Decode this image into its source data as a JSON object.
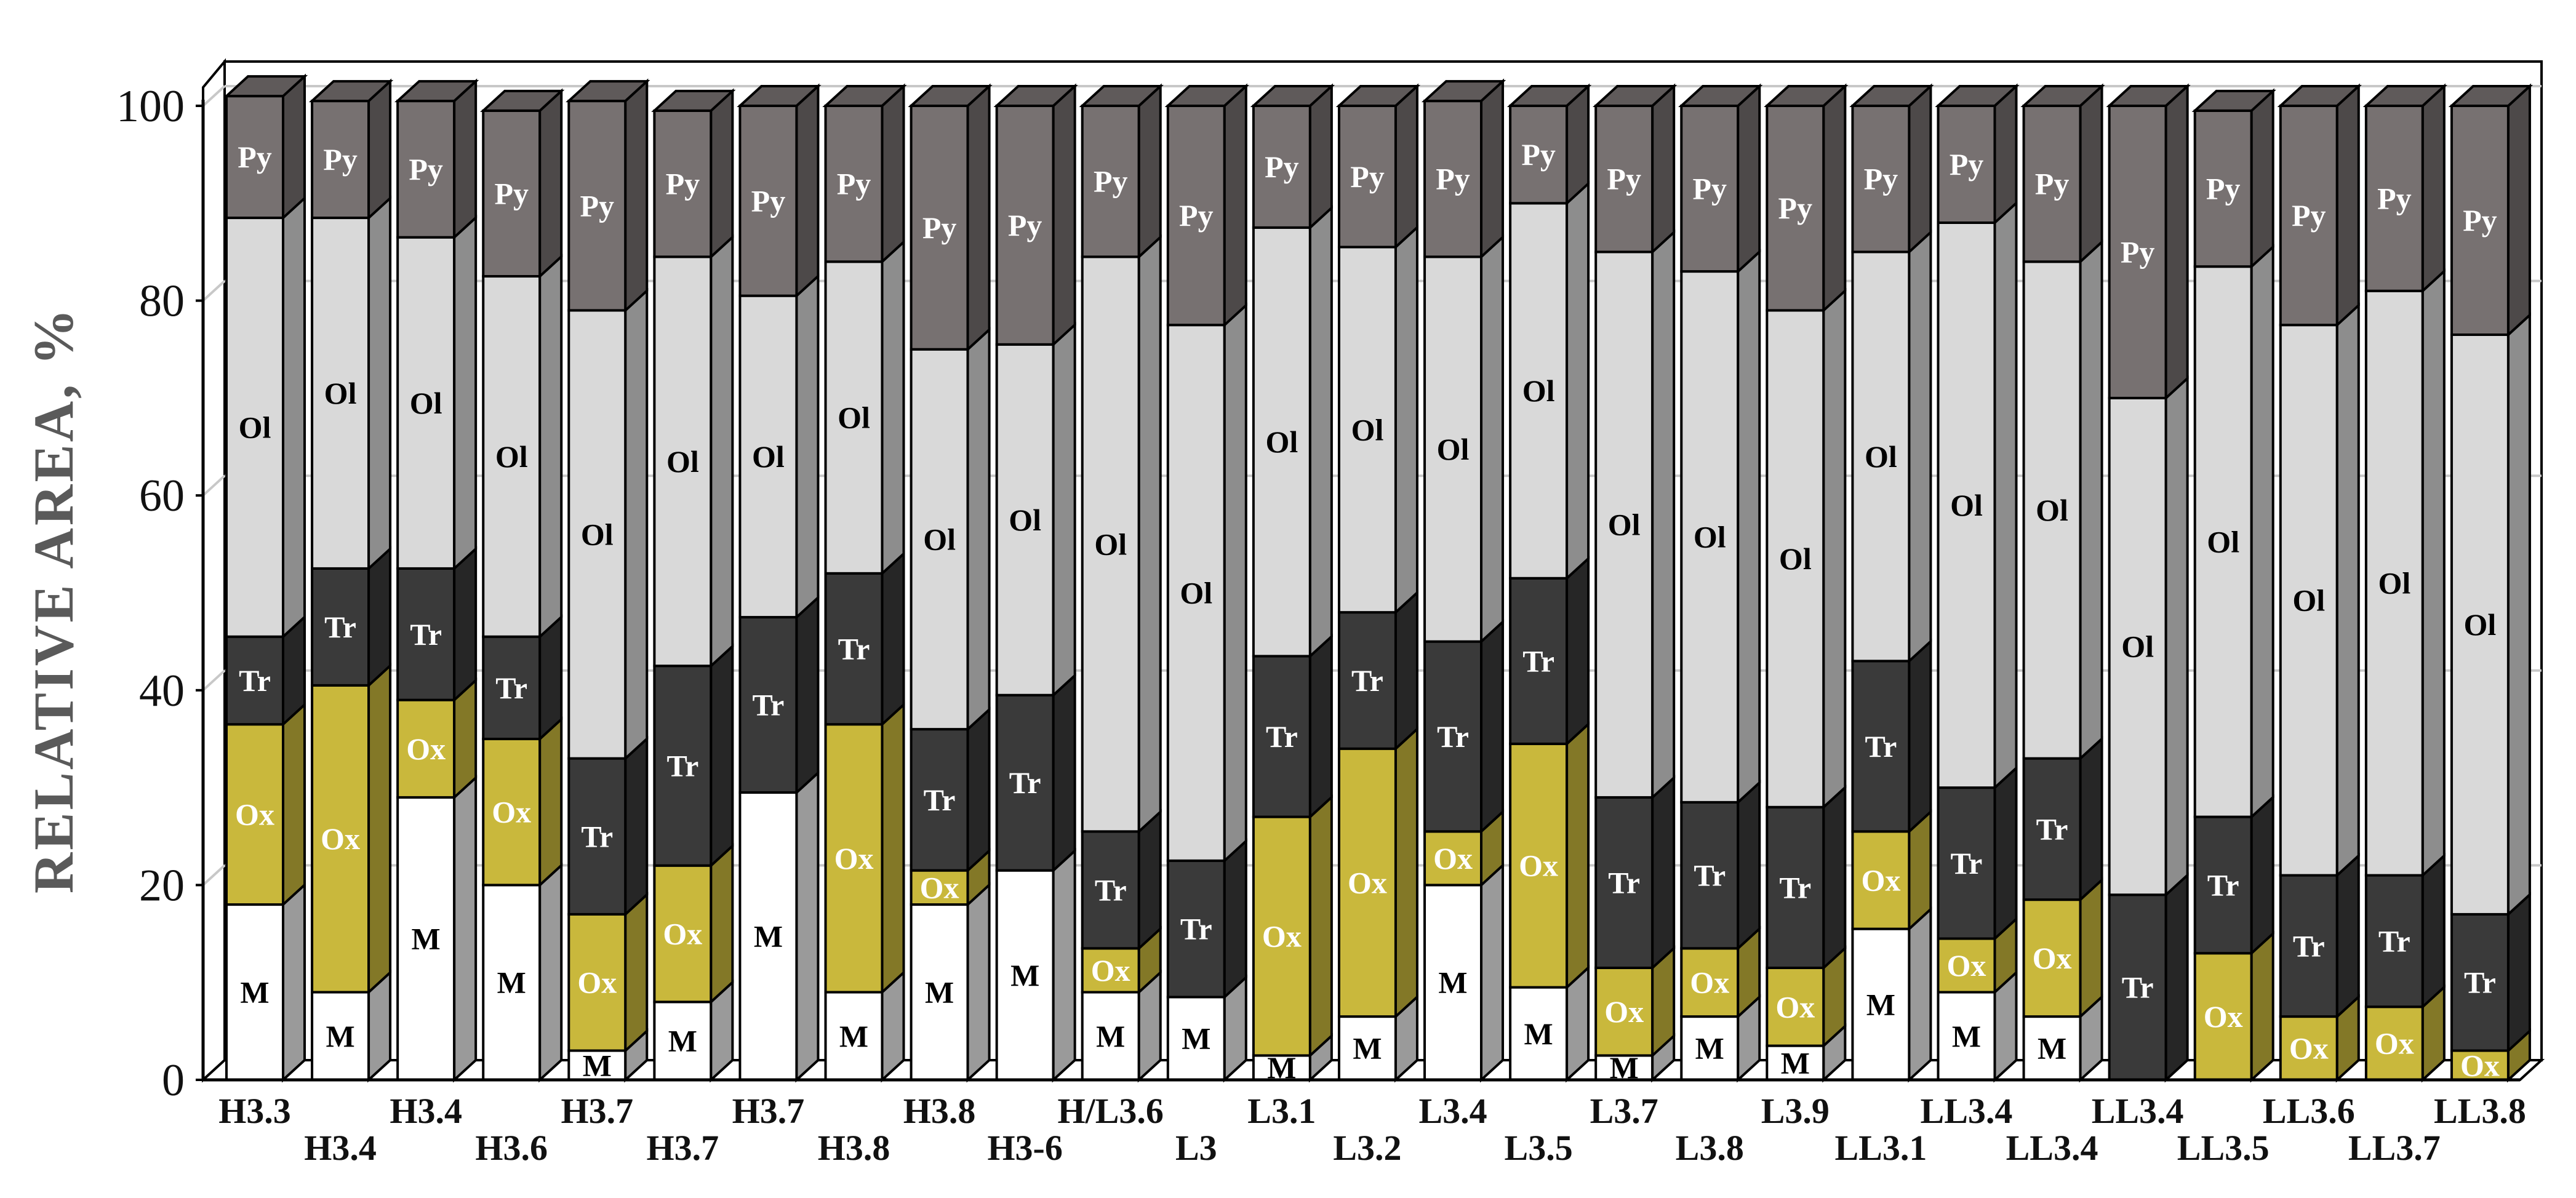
{
  "chart_data": {
    "type": "bar",
    "stacked": true,
    "three_d": true,
    "ylabel": "RELATIVE AREA, %",
    "xlabel": "",
    "title": "",
    "ylim": [
      0,
      100
    ],
    "yticks": [
      0,
      20,
      40,
      60,
      80,
      100
    ],
    "grid": true,
    "legend": "none",
    "categories": [
      "H3.3",
      "H3.4",
      "H3.4",
      "H3.6",
      "H3.7",
      "H3.7",
      "H3.7",
      "H3.8",
      "H3.8",
      "H3-6",
      "H/L3.6",
      "L3",
      "L3.1",
      "L3.2",
      "L3.4",
      "L3.5",
      "L3.7",
      "L3.8",
      "L3.9",
      "LL3.1",
      "LL3.4",
      "LL3.4",
      "LL3.4",
      "LL3.5",
      "LL3.6",
      "LL3.7",
      "LL3.8"
    ],
    "series": [
      {
        "name": "M",
        "color": "#ffffff",
        "text_color": "#000000",
        "values": [
          18,
          9,
          29,
          20,
          3,
          8,
          29.5,
          9,
          18,
          21.5,
          9,
          8.5,
          2.5,
          6.5,
          20,
          9.5,
          2.5,
          6.5,
          3.5,
          15.5,
          9,
          6.5,
          0,
          0,
          0,
          0,
          0
        ]
      },
      {
        "name": "Ox",
        "color": "#c9b83c",
        "text_color": "#ffffff",
        "values": [
          18.5,
          31.5,
          10,
          15,
          14,
          14,
          0,
          27.5,
          3.5,
          0,
          4.5,
          0,
          24.5,
          27.5,
          5.5,
          25,
          9,
          7,
          8,
          10,
          5.5,
          12,
          0,
          13,
          6.5,
          7.5,
          3
        ]
      },
      {
        "name": "Tr",
        "color": "#3a3a3a",
        "text_color": "#ffffff",
        "values": [
          9,
          12,
          13.5,
          10.5,
          16,
          20.5,
          18,
          15.5,
          14.5,
          18,
          12,
          14,
          16.5,
          14,
          19.5,
          17,
          17.5,
          15,
          16.5,
          17.5,
          15.5,
          14.5,
          19,
          14,
          14.5,
          13.5,
          14
        ]
      },
      {
        "name": "Ol",
        "color": "#d9d9d9",
        "text_color": "#000000",
        "values": [
          43,
          36,
          34,
          37,
          46,
          42,
          33,
          32,
          39,
          36,
          59,
          55,
          44,
          37.5,
          39.5,
          38.5,
          56,
          54.5,
          51,
          42,
          58,
          51,
          51,
          56.5,
          56.5,
          60,
          59.5
        ]
      },
      {
        "name": "Py",
        "color": "#777171",
        "text_color": "#ffffff",
        "values": [
          12.5,
          12,
          14,
          17,
          21.5,
          15,
          19.5,
          16,
          25,
          24.5,
          15.5,
          22.5,
          12.5,
          14.5,
          16,
          10,
          15,
          17,
          21,
          15,
          12,
          16,
          30,
          16,
          22.5,
          19,
          23.5
        ]
      }
    ]
  }
}
